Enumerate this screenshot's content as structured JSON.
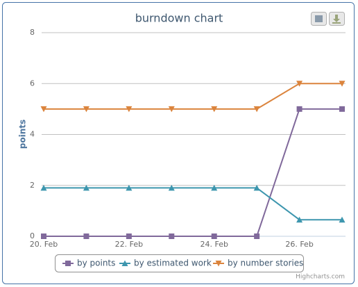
{
  "chart_data": {
    "type": "line",
    "title": "burndown chart",
    "y_label": "points",
    "categories": [
      "20. Feb",
      null,
      "22. Feb",
      null,
      "24. Feb",
      null,
      "26. Feb",
      null
    ],
    "series": [
      {
        "name": "by points",
        "color": "#80699B",
        "marker": "square",
        "values": [
          0,
          0,
          0,
          0,
          0,
          0,
          5,
          5
        ]
      },
      {
        "name": "by estimated work",
        "color": "#3D96AE",
        "marker": "triangle",
        "values": [
          1.9,
          1.9,
          1.9,
          1.9,
          1.9,
          1.9,
          0.65,
          0.65
        ]
      },
      {
        "name": "by number stories",
        "color": "#DB843D",
        "marker": "triangle-down",
        "values": [
          5,
          5,
          5,
          5,
          5,
          5,
          6,
          6
        ]
      }
    ],
    "ylim": [
      0,
      8
    ],
    "yticks": [
      0,
      2,
      4,
      6,
      8
    ],
    "grid": true,
    "legend": "bottom",
    "credits": "Highcharts.com"
  }
}
